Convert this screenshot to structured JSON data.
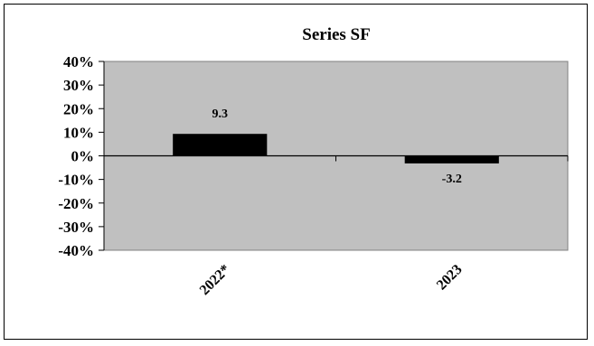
{
  "chart_data": {
    "type": "bar",
    "title": "Series SF",
    "categories": [
      "2022*",
      "2023"
    ],
    "values": [
      9.3,
      -3.2
    ],
    "data_labels": [
      "9.3",
      "-3.2"
    ],
    "ylim": [
      -40,
      40
    ],
    "yticks": [
      40,
      30,
      20,
      10,
      0,
      -10,
      -20,
      -30,
      -40
    ],
    "ytick_labels": [
      "40%",
      "30%",
      "20%",
      "10%",
      "0%",
      "-10%",
      "-20%",
      "-30%",
      "-40%"
    ],
    "xlabel": "",
    "ylabel": "",
    "grid": false,
    "legend": "none",
    "colors": {
      "plot_bg": "#c0c0c0",
      "bar": "#000000",
      "page_bg": "#ffffff"
    }
  }
}
